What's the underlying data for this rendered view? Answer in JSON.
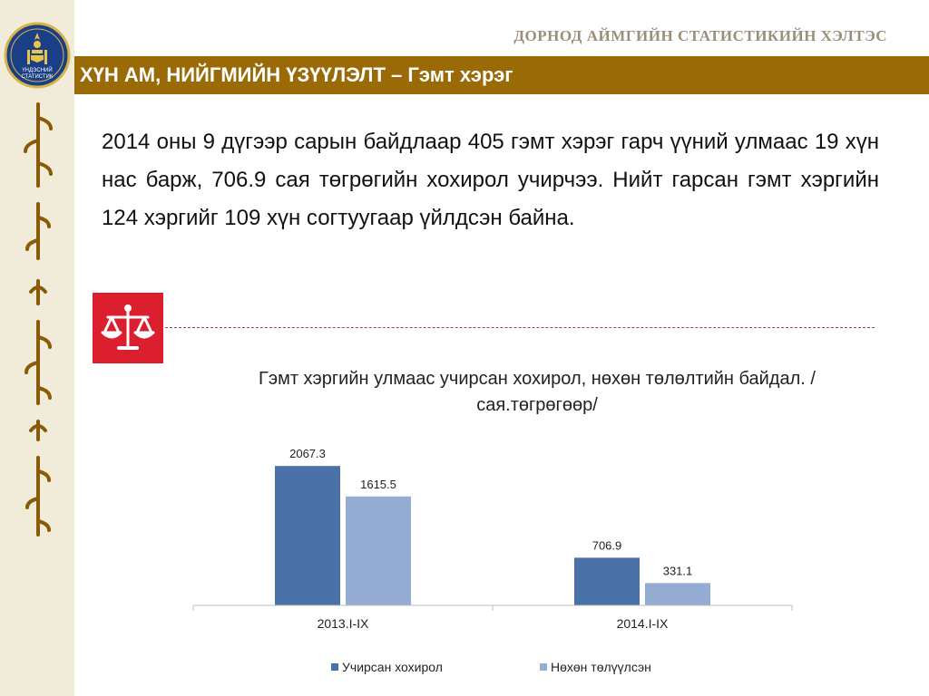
{
  "header": {
    "agency": "ДОРНОД АЙМГИЙН СТАТИСТИКИЙН ХЭЛТЭС",
    "title": "ХҮН АМ, НИЙГМИЙН ҮЗҮҮЛЭЛТ – Гэмт хэрэг",
    "logo_text_1": "ҮНДЭСНИЙ",
    "logo_text_2": "СТАТИСТИК"
  },
  "body": {
    "paragraph": "2014 оны 9 дүгээр сарын байдлаар 405 гэмт хэрэг гарч үүний улмаас 19 хүн нас барж, 706.9 сая төгрөгийн хохирол учирчээ. Нийт гарсан гэмт хэргийн 124 хэргийг 109 хүн согтуугаар үйлдсэн байна."
  },
  "icons": {
    "justice": "scales-icon",
    "side": "mongolian-script-decoration"
  },
  "colors": {
    "header_bar": "#9a6a06",
    "icon_box": "#dc1f2e",
    "series_1": "#4a71a8",
    "series_2": "#95acd3"
  },
  "chart_data": {
    "type": "bar",
    "title": "Гэмт хэргийн улмаас учирсан хохирол, нөхөн төлөлтийн байдал. /сая.төгрөгөөр/",
    "categories": [
      "2013.I-IX",
      "2014.I-IX"
    ],
    "series": [
      {
        "name": "Учирсан хохирол",
        "values": [
          2067.3,
          706.9
        ]
      },
      {
        "name": "Нөхөн төлүүлсэн",
        "values": [
          1615.5,
          331.1
        ]
      }
    ],
    "ylim": [
      0,
      2500
    ],
    "grid": false,
    "legend": "bottom"
  }
}
